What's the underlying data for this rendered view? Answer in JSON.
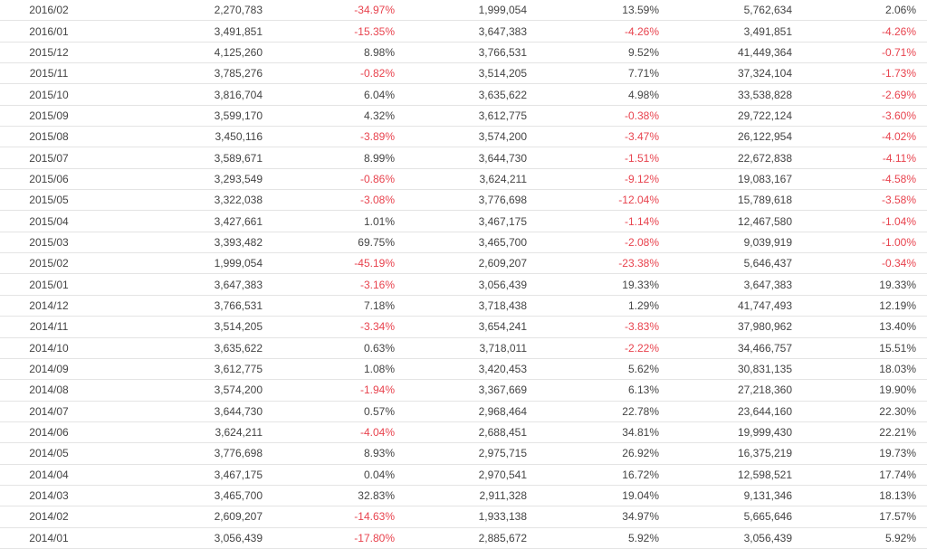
{
  "colors": {
    "text": "#444444",
    "negative": "#e8434e",
    "row_border": "#e4e4e4"
  },
  "rows": [
    [
      "2016/02",
      "2,270,783",
      "-34.97%",
      "1,999,054",
      "13.59%",
      "5,762,634",
      "2.06%"
    ],
    [
      "2016/01",
      "3,491,851",
      "-15.35%",
      "3,647,383",
      "-4.26%",
      "3,491,851",
      "-4.26%"
    ],
    [
      "2015/12",
      "4,125,260",
      "8.98%",
      "3,766,531",
      "9.52%",
      "41,449,364",
      "-0.71%"
    ],
    [
      "2015/11",
      "3,785,276",
      "-0.82%",
      "3,514,205",
      "7.71%",
      "37,324,104",
      "-1.73%"
    ],
    [
      "2015/10",
      "3,816,704",
      "6.04%",
      "3,635,622",
      "4.98%",
      "33,538,828",
      "-2.69%"
    ],
    [
      "2015/09",
      "3,599,170",
      "4.32%",
      "3,612,775",
      "-0.38%",
      "29,722,124",
      "-3.60%"
    ],
    [
      "2015/08",
      "3,450,116",
      "-3.89%",
      "3,574,200",
      "-3.47%",
      "26,122,954",
      "-4.02%"
    ],
    [
      "2015/07",
      "3,589,671",
      "8.99%",
      "3,644,730",
      "-1.51%",
      "22,672,838",
      "-4.11%"
    ],
    [
      "2015/06",
      "3,293,549",
      "-0.86%",
      "3,624,211",
      "-9.12%",
      "19,083,167",
      "-4.58%"
    ],
    [
      "2015/05",
      "3,322,038",
      "-3.08%",
      "3,776,698",
      "-12.04%",
      "15,789,618",
      "-3.58%"
    ],
    [
      "2015/04",
      "3,427,661",
      "1.01%",
      "3,467,175",
      "-1.14%",
      "12,467,580",
      "-1.04%"
    ],
    [
      "2015/03",
      "3,393,482",
      "69.75%",
      "3,465,700",
      "-2.08%",
      "9,039,919",
      "-1.00%"
    ],
    [
      "2015/02",
      "1,999,054",
      "-45.19%",
      "2,609,207",
      "-23.38%",
      "5,646,437",
      "-0.34%"
    ],
    [
      "2015/01",
      "3,647,383",
      "-3.16%",
      "3,056,439",
      "19.33%",
      "3,647,383",
      "19.33%"
    ],
    [
      "2014/12",
      "3,766,531",
      "7.18%",
      "3,718,438",
      "1.29%",
      "41,747,493",
      "12.19%"
    ],
    [
      "2014/11",
      "3,514,205",
      "-3.34%",
      "3,654,241",
      "-3.83%",
      "37,980,962",
      "13.40%"
    ],
    [
      "2014/10",
      "3,635,622",
      "0.63%",
      "3,718,011",
      "-2.22%",
      "34,466,757",
      "15.51%"
    ],
    [
      "2014/09",
      "3,612,775",
      "1.08%",
      "3,420,453",
      "5.62%",
      "30,831,135",
      "18.03%"
    ],
    [
      "2014/08",
      "3,574,200",
      "-1.94%",
      "3,367,669",
      "6.13%",
      "27,218,360",
      "19.90%"
    ],
    [
      "2014/07",
      "3,644,730",
      "0.57%",
      "2,968,464",
      "22.78%",
      "23,644,160",
      "22.30%"
    ],
    [
      "2014/06",
      "3,624,211",
      "-4.04%",
      "2,688,451",
      "34.81%",
      "19,999,430",
      "22.21%"
    ],
    [
      "2014/05",
      "3,776,698",
      "8.93%",
      "2,975,715",
      "26.92%",
      "16,375,219",
      "19.73%"
    ],
    [
      "2014/04",
      "3,467,175",
      "0.04%",
      "2,970,541",
      "16.72%",
      "12,598,521",
      "17.74%"
    ],
    [
      "2014/03",
      "3,465,700",
      "32.83%",
      "2,911,328",
      "19.04%",
      "9,131,346",
      "18.13%"
    ],
    [
      "2014/02",
      "2,609,207",
      "-14.63%",
      "1,933,138",
      "34.97%",
      "5,665,646",
      "17.57%"
    ],
    [
      "2014/01",
      "3,056,439",
      "-17.80%",
      "2,885,672",
      "5.92%",
      "3,056,439",
      "5.92%"
    ]
  ]
}
